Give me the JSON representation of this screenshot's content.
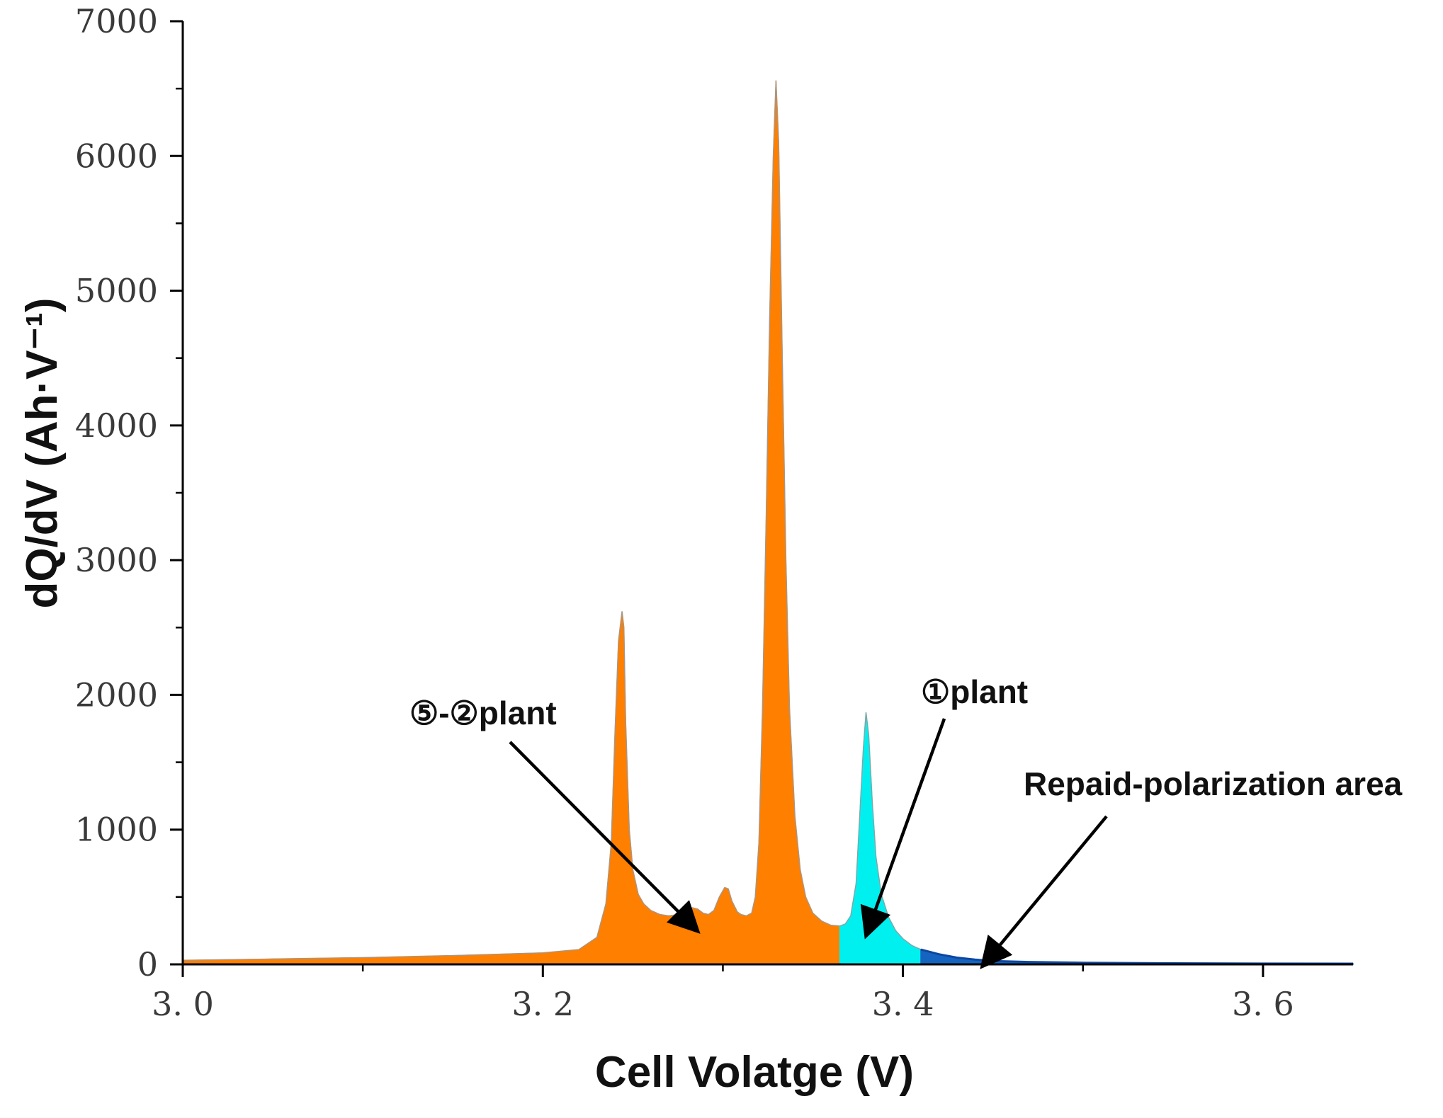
{
  "chart_data": {
    "type": "area",
    "title": "",
    "xlabel": "Cell Volatge (V)",
    "ylabel": "dQ/dV (Ah·V⁻¹)",
    "xlim": [
      3.0,
      3.65
    ],
    "ylim": [
      0,
      7000
    ],
    "x_ticks": [
      {
        "value": 3.0,
        "label": "3. 0"
      },
      {
        "value": 3.2,
        "label": "3. 2"
      },
      {
        "value": 3.4,
        "label": "3. 4"
      },
      {
        "value": 3.6,
        "label": "3. 6"
      }
    ],
    "x_minor_ticks": [
      3.1,
      3.3,
      3.5
    ],
    "y_ticks": [
      {
        "value": 0,
        "label": "0"
      },
      {
        "value": 1000,
        "label": "1000"
      },
      {
        "value": 2000,
        "label": "2000"
      },
      {
        "value": 3000,
        "label": "3000"
      },
      {
        "value": 4000,
        "label": "4000"
      },
      {
        "value": 5000,
        "label": "5000"
      },
      {
        "value": 6000,
        "label": "6000"
      },
      {
        "value": 7000,
        "label": "7000"
      }
    ],
    "y_minor_ticks": [
      500,
      1500,
      2500,
      3500,
      4500,
      5500,
      6500
    ],
    "grid": false,
    "series": [
      {
        "name": "⑤-②plant",
        "color": "#FF7F00",
        "x": [
          3.0,
          3.05,
          3.1,
          3.15,
          3.2,
          3.22,
          3.23,
          3.235,
          3.238,
          3.24,
          3.242,
          3.244,
          3.245,
          3.246,
          3.248,
          3.25,
          3.253,
          3.256,
          3.26,
          3.265,
          3.27,
          3.275,
          3.28,
          3.283,
          3.286,
          3.289,
          3.292,
          3.295,
          3.298,
          3.301,
          3.303,
          3.305,
          3.308,
          3.31,
          3.313,
          3.316,
          3.318,
          3.32,
          3.322,
          3.324,
          3.326,
          3.328,
          3.3295,
          3.331,
          3.333,
          3.335,
          3.337,
          3.34,
          3.343,
          3.346,
          3.35,
          3.355,
          3.36,
          3.365
        ],
        "values": [
          30,
          40,
          50,
          65,
          85,
          110,
          200,
          450,
          900,
          1700,
          2400,
          2620,
          2500,
          1800,
          1000,
          700,
          520,
          450,
          400,
          370,
          360,
          370,
          400,
          420,
          410,
          380,
          370,
          400,
          500,
          570,
          560,
          470,
          390,
          370,
          360,
          380,
          500,
          900,
          1900,
          3300,
          4800,
          6000,
          6560,
          6100,
          4500,
          3000,
          1900,
          1100,
          700,
          500,
          380,
          320,
          290,
          285
        ],
        "region_range": [
          3.0,
          3.365
        ]
      },
      {
        "name": "①plant",
        "color": "#00F0F0",
        "x": [
          3.365,
          3.368,
          3.371,
          3.374,
          3.376,
          3.378,
          3.3795,
          3.381,
          3.383,
          3.385,
          3.388,
          3.392,
          3.396,
          3.4,
          3.405,
          3.41
        ],
        "values": [
          285,
          300,
          360,
          600,
          1100,
          1600,
          1870,
          1700,
          1200,
          800,
          520,
          350,
          250,
          190,
          140,
          110
        ],
        "region_range": [
          3.365,
          3.41
        ]
      },
      {
        "name": "Repaid-polarization area",
        "color": "#1565C0",
        "x": [
          3.41,
          3.42,
          3.43,
          3.44,
          3.45,
          3.47,
          3.5,
          3.55,
          3.6,
          3.65
        ],
        "values": [
          110,
          75,
          50,
          35,
          25,
          18,
          12,
          8,
          6,
          5
        ],
        "region_range": [
          3.41,
          3.65
        ]
      }
    ],
    "annotations": [
      {
        "text": "⑤-②plant",
        "target_x": 3.285,
        "target_y": 260
      },
      {
        "text": "①plant",
        "target_x": 3.38,
        "target_y": 230
      },
      {
        "text": "Repaid-polarization area",
        "target_x": 3.445,
        "target_y": 0
      }
    ]
  }
}
